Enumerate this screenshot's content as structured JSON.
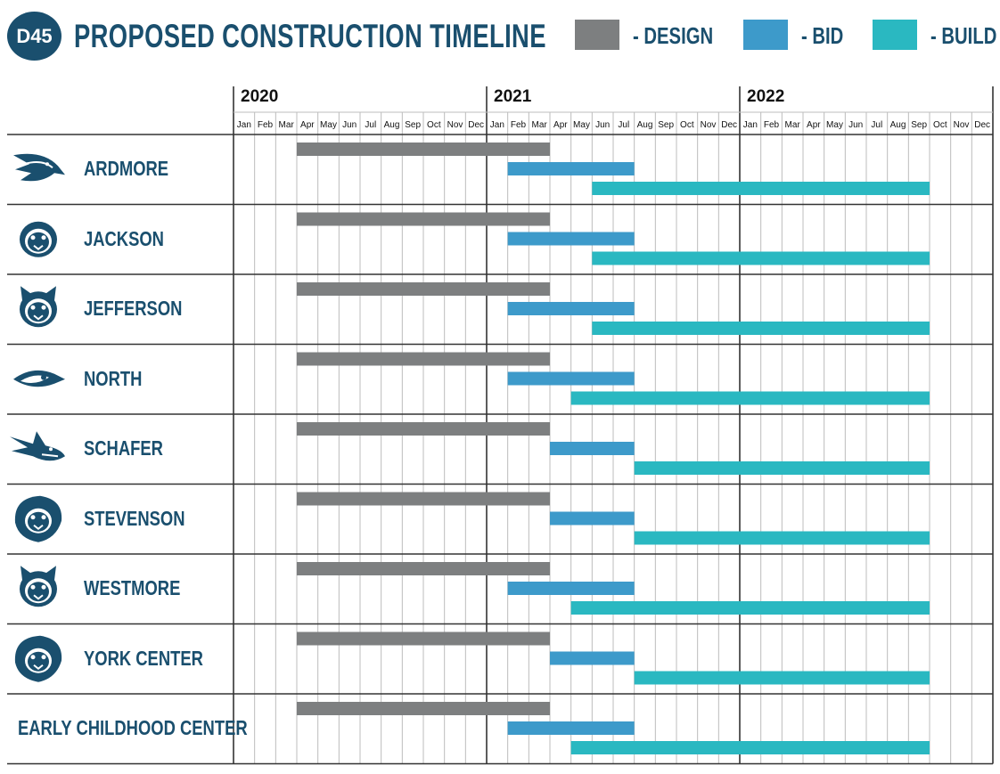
{
  "header": {
    "logo_text": "D45",
    "title": "PROPOSED CONSTRUCTION TIMELINE"
  },
  "legend": [
    {
      "label": "- DESIGN",
      "color": "#7d7f80"
    },
    {
      "label": "- BID",
      "color": "#3d9aca"
    },
    {
      "label": "- BUILD",
      "color": "#2ab8c1"
    }
  ],
  "colors": {
    "brand": "#1a4f6e",
    "design": "#7d7f80",
    "bid": "#3d9aca",
    "build": "#2ab8c1",
    "grid": "#bcbcbc",
    "frame": "#333333"
  },
  "chart_data": {
    "type": "gantt",
    "title": "PROPOSED CONSTRUCTION TIMELINE",
    "years": [
      "2020",
      "2021",
      "2022"
    ],
    "months": [
      "Jan",
      "Feb",
      "Mar",
      "Apr",
      "May",
      "Jun",
      "Jul",
      "Aug",
      "Sep",
      "Oct",
      "Nov",
      "Dec"
    ],
    "x_range": [
      "2020-01",
      "2022-12"
    ],
    "grid": true,
    "legend_position": "top-right",
    "phases": [
      "- DESIGN",
      "- BID",
      "- BUILD"
    ],
    "rows": [
      {
        "name": "ARDMORE",
        "mascot": "eagle-icon",
        "design": [
          "2020-04",
          "2021-03"
        ],
        "bid": [
          "2021-02",
          "2021-07"
        ],
        "build": [
          "2021-06",
          "2022-09"
        ]
      },
      {
        "name": "JACKSON",
        "mascot": "jaguar-icon",
        "design": [
          "2020-04",
          "2021-03"
        ],
        "bid": [
          "2021-02",
          "2021-07"
        ],
        "build": [
          "2021-06",
          "2022-09"
        ]
      },
      {
        "name": "JEFFERSON",
        "mascot": "wildcat-icon",
        "design": [
          "2020-04",
          "2021-03"
        ],
        "bid": [
          "2021-02",
          "2021-07"
        ],
        "build": [
          "2021-06",
          "2022-09"
        ]
      },
      {
        "name": "NORTH",
        "mascot": "penguin-icon",
        "design": [
          "2020-04",
          "2021-03"
        ],
        "bid": [
          "2021-02",
          "2021-07"
        ],
        "build": [
          "2021-05",
          "2022-09"
        ]
      },
      {
        "name": "SCHAFER",
        "mascot": "shark-icon",
        "design": [
          "2020-04",
          "2021-03"
        ],
        "bid": [
          "2021-04",
          "2021-07"
        ],
        "build": [
          "2021-08",
          "2022-09"
        ]
      },
      {
        "name": "STEVENSON",
        "mascot": "lion-icon",
        "design": [
          "2020-04",
          "2021-03"
        ],
        "bid": [
          "2021-04",
          "2021-07"
        ],
        "build": [
          "2021-08",
          "2022-09"
        ]
      },
      {
        "name": "WESTMORE",
        "mascot": "lynx-icon",
        "design": [
          "2020-04",
          "2021-03"
        ],
        "bid": [
          "2021-02",
          "2021-07"
        ],
        "build": [
          "2021-05",
          "2022-09"
        ]
      },
      {
        "name": "YORK CENTER",
        "mascot": "lion-icon",
        "design": [
          "2020-04",
          "2021-03"
        ],
        "bid": [
          "2021-04",
          "2021-07"
        ],
        "build": [
          "2021-08",
          "2022-09"
        ]
      },
      {
        "name": "EARLY CHILDHOOD CENTER",
        "mascot": "",
        "design": [
          "2020-04",
          "2021-03"
        ],
        "bid": [
          "2021-02",
          "2021-07"
        ],
        "build": [
          "2021-05",
          "2022-09"
        ]
      }
    ]
  }
}
